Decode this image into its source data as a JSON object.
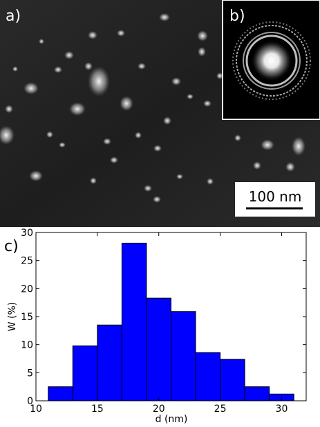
{
  "panels": {
    "a": "a)",
    "b": "b)",
    "c": "c)"
  },
  "scale_bar": {
    "label": "100 nm"
  },
  "chart_data": {
    "type": "bar",
    "xlabel": "d (nm)",
    "ylabel": "W (%)",
    "xlim": [
      10,
      32
    ],
    "ylim": [
      0,
      30
    ],
    "xticks": [
      10,
      15,
      20,
      25,
      30
    ],
    "yticks": [
      0,
      5,
      10,
      15,
      20,
      25,
      30
    ],
    "bin_width": 2,
    "bins": [
      {
        "x0": 11,
        "x1": 13,
        "value": 2.5
      },
      {
        "x0": 13,
        "x1": 15,
        "value": 9.8
      },
      {
        "x0": 15,
        "x1": 17,
        "value": 13.5
      },
      {
        "x0": 17,
        "x1": 19,
        "value": 28.1
      },
      {
        "x0": 19,
        "x1": 21,
        "value": 18.3
      },
      {
        "x0": 21,
        "x1": 23,
        "value": 15.9
      },
      {
        "x0": 23,
        "x1": 25,
        "value": 8.6
      },
      {
        "x0": 25,
        "x1": 27,
        "value": 7.4
      },
      {
        "x0": 27,
        "x1": 29,
        "value": 2.5
      },
      {
        "x0": 29,
        "x1": 31,
        "value": 1.2
      }
    ],
    "bar_color": "#0000ff",
    "bar_edge_color": "#000000",
    "grid": false
  }
}
